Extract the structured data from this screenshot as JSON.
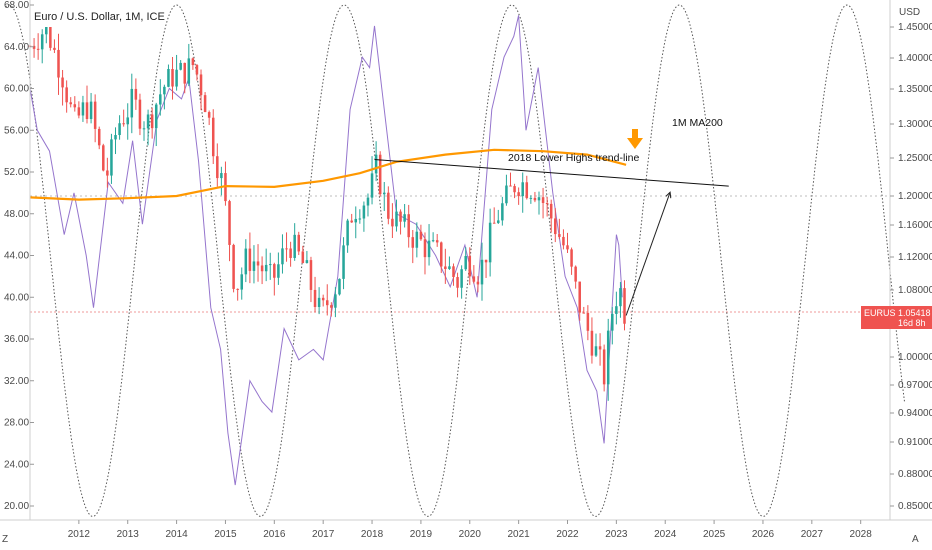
{
  "chart_data": {
    "type": "candlestick",
    "title": "Euro / U.S. Dollar, 1M, ICE",
    "right_axis_unit": "USD",
    "left_axis_ticks": [
      "68.00",
      "64.00",
      "60.00",
      "56.00",
      "52.00",
      "48.00",
      "44.00",
      "40.00",
      "36.00",
      "32.00",
      "28.00",
      "24.00",
      "20.00"
    ],
    "right_axis_ticks": [
      "1.45000",
      "1.40000",
      "1.35000",
      "1.30000",
      "1.25000",
      "1.20000",
      "1.16000",
      "1.12000",
      "1.08000",
      "1.04000",
      "1.00000",
      "0.97000",
      "0.94000",
      "0.91000",
      "0.88000",
      "0.85000"
    ],
    "x_ticks": [
      "2012",
      "2013",
      "2014",
      "2015",
      "2016",
      "2017",
      "2018",
      "2019",
      "2020",
      "2021",
      "2022",
      "2023",
      "2024",
      "2025",
      "2026",
      "2027",
      "2028"
    ],
    "current_price": {
      "symbol": "EURUSD",
      "value": "1.05418",
      "countdown": "16d 8h"
    },
    "annotations": {
      "ma_label": "1M MA200",
      "trendline_label": "2018 Lower Highs trend-line"
    },
    "axis_corner_left": "Z",
    "axis_corner_right": "A",
    "colors": {
      "up": "#26a69a",
      "down": "#ef5350",
      "ma200": "#ff9800",
      "rsi": "#9575cd",
      "sine": "#555555",
      "price_tag": "#ef5350"
    },
    "monthly_close": [
      [
        2011.0,
        1.42
      ],
      [
        2011.33,
        1.45
      ],
      [
        2011.67,
        1.37
      ],
      [
        2011.9,
        1.3
      ],
      [
        2012.2,
        1.33
      ],
      [
        2012.55,
        1.22
      ],
      [
        2012.8,
        1.3
      ],
      [
        2013.1,
        1.33
      ],
      [
        2013.4,
        1.3
      ],
      [
        2013.7,
        1.35
      ],
      [
        2013.9,
        1.37
      ],
      [
        2014.2,
        1.38
      ],
      [
        2014.35,
        1.39
      ],
      [
        2014.6,
        1.33
      ],
      [
        2014.75,
        1.27
      ],
      [
        2014.95,
        1.21
      ],
      [
        2015.2,
        1.08
      ],
      [
        2015.45,
        1.12
      ],
      [
        2015.7,
        1.11
      ],
      [
        2015.95,
        1.09
      ],
      [
        2016.3,
        1.14
      ],
      [
        2016.6,
        1.11
      ],
      [
        2016.95,
        1.05
      ],
      [
        2017.3,
        1.09
      ],
      [
        2017.6,
        1.18
      ],
      [
        2017.95,
        1.2
      ],
      [
        2018.1,
        1.24
      ],
      [
        2018.3,
        1.18
      ],
      [
        2018.6,
        1.16
      ],
      [
        2018.95,
        1.14
      ],
      [
        2019.4,
        1.12
      ],
      [
        2019.75,
        1.09
      ],
      [
        2019.95,
        1.12
      ],
      [
        2020.2,
        1.1
      ],
      [
        2020.55,
        1.17
      ],
      [
        2020.95,
        1.22
      ],
      [
        2021.35,
        1.21
      ],
      [
        2021.6,
        1.18
      ],
      [
        2021.95,
        1.13
      ],
      [
        2022.3,
        1.05
      ],
      [
        2022.75,
        0.98
      ],
      [
        2022.95,
        1.07
      ],
      [
        2023.1,
        1.08
      ],
      [
        2023.17,
        1.05418
      ]
    ],
    "ma200": [
      [
        2011.0,
        1.198
      ],
      [
        2012.0,
        1.195
      ],
      [
        2013.0,
        1.197
      ],
      [
        2014.0,
        1.2
      ],
      [
        2015.0,
        1.213
      ],
      [
        2016.0,
        1.212
      ],
      [
        2017.0,
        1.22
      ],
      [
        2017.75,
        1.23
      ],
      [
        2018.5,
        1.245
      ],
      [
        2019.5,
        1.255
      ],
      [
        2020.5,
        1.262
      ],
      [
        2021.5,
        1.26
      ],
      [
        2022.4,
        1.255
      ],
      [
        2023.2,
        1.241
      ]
    ],
    "rsi": [
      [
        2011.0,
        60
      ],
      [
        2011.15,
        56
      ],
      [
        2011.4,
        54
      ],
      [
        2011.7,
        46
      ],
      [
        2011.9,
        50
      ],
      [
        2012.15,
        44
      ],
      [
        2012.3,
        39
      ],
      [
        2012.6,
        51
      ],
      [
        2012.9,
        49
      ],
      [
        2013.1,
        55
      ],
      [
        2013.3,
        47
      ],
      [
        2013.6,
        57
      ],
      [
        2013.85,
        60
      ],
      [
        2014.1,
        59
      ],
      [
        2014.25,
        61
      ],
      [
        2014.45,
        53
      ],
      [
        2014.7,
        39
      ],
      [
        2014.9,
        35
      ],
      [
        2015.05,
        27
      ],
      [
        2015.2,
        22
      ],
      [
        2015.5,
        32
      ],
      [
        2015.75,
        30
      ],
      [
        2015.95,
        29
      ],
      [
        2016.2,
        37
      ],
      [
        2016.5,
        34
      ],
      [
        2016.8,
        35
      ],
      [
        2017.0,
        34
      ],
      [
        2017.3,
        42
      ],
      [
        2017.55,
        58
      ],
      [
        2017.8,
        63
      ],
      [
        2017.95,
        62
      ],
      [
        2018.05,
        66
      ],
      [
        2018.2,
        60
      ],
      [
        2018.5,
        48
      ],
      [
        2018.9,
        47
      ],
      [
        2019.3,
        44
      ],
      [
        2019.6,
        41
      ],
      [
        2019.9,
        45
      ],
      [
        2020.15,
        40
      ],
      [
        2020.45,
        58
      ],
      [
        2020.7,
        63
      ],
      [
        2020.9,
        65
      ],
      [
        2021.0,
        67
      ],
      [
        2021.15,
        56
      ],
      [
        2021.4,
        62
      ],
      [
        2021.7,
        50
      ],
      [
        2021.95,
        42
      ],
      [
        2022.2,
        39
      ],
      [
        2022.4,
        33
      ],
      [
        2022.6,
        31
      ],
      [
        2022.75,
        26
      ],
      [
        2022.9,
        38
      ],
      [
        2023.0,
        46
      ],
      [
        2023.05,
        45
      ],
      [
        2023.12,
        40
      ]
    ],
    "sine": {
      "period_years": 3.43,
      "first_peak": 2014.0,
      "top_value": 68.0,
      "bottom_value": 19.0
    },
    "trendline": {
      "from": [
        2018.05,
        1.248
      ],
      "to": [
        2025.3,
        1.213
      ]
    },
    "projection_arrow": {
      "from": [
        2023.2,
        1.05
      ],
      "to": [
        2024.1,
        1.205
      ]
    }
  }
}
